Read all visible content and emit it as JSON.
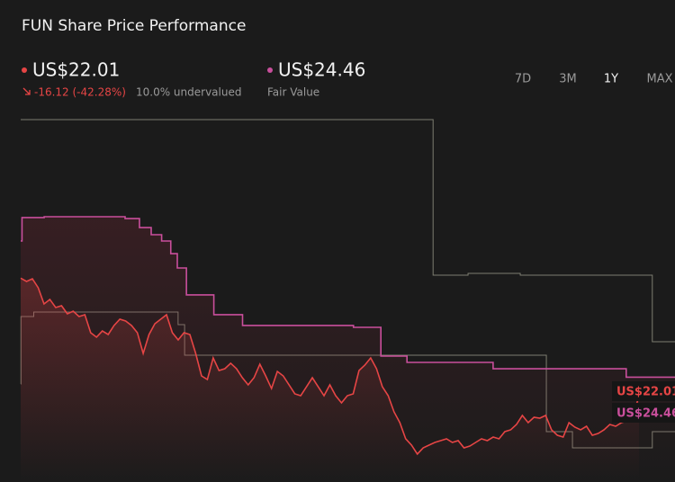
{
  "header": {
    "title": "FUN Share Price Performance",
    "price": "US$22.01",
    "change": "-16.12 (-42.28%)",
    "undervalued": "10.0% undervalued",
    "fair_value": "US$24.46",
    "fair_value_caption": "Fair Value",
    "ranges": [
      "7D",
      "3M",
      "1Y",
      "MAX"
    ],
    "active_range": 2
  },
  "chart_data": {
    "type": "line",
    "xlim": [
      0,
      250
    ],
    "ylim": [
      10,
      60
    ],
    "series": [
      {
        "color": "#7d7d70",
        "step": true,
        "x": [
          0,
          158,
          171.4,
          191.4,
          242
        ],
        "values": [
          60,
          38.54,
          38.78,
          38.54,
          29.36
        ]
      },
      {
        "color": "#7d7d70",
        "step": true,
        "x": [
          0,
          0.1,
          5,
          60.3,
          62.8,
          201.4,
          211.4,
          242
        ],
        "values": [
          23.52,
          32.83,
          33.45,
          31.71,
          27.49,
          16.95,
          14.71,
          16.95
        ]
      },
      {
        "color": "#c94f9c",
        "step": true,
        "fill": true,
        "x": [
          0,
          0.5,
          9,
          40,
          45.5,
          50,
          54,
          57.5,
          60,
          63.5,
          74,
          85,
          127.5,
          138,
          148,
          181,
          232
        ],
        "values": [
          43.25,
          46.48,
          46.6,
          46.35,
          45.11,
          44.12,
          43.25,
          41.51,
          39.53,
          35.81,
          33.08,
          31.59,
          31.34,
          27.37,
          26.5,
          25.63,
          24.46
        ]
      },
      {
        "color": "#e64545",
        "fill": true,
        "values": [
          38.13,
          37.67,
          38.04,
          36.8,
          34.57,
          35.19,
          34.07,
          34.32,
          33.2,
          33.57,
          32.83,
          33.08,
          30.6,
          29.98,
          30.84,
          30.35,
          31.59,
          32.46,
          32.21,
          31.59,
          30.6,
          27.74,
          30.35,
          31.84,
          32.46,
          33.08,
          30.6,
          29.6,
          30.6,
          30.35,
          27.74,
          24.64,
          24.14,
          27.12,
          25.38,
          25.63,
          26.38,
          25.63,
          24.39,
          23.4,
          24.39,
          26.25,
          24.64,
          22.9,
          25.26,
          24.64,
          23.4,
          22.16,
          21.91,
          23.15,
          24.39,
          23.15,
          21.91,
          23.4,
          21.91,
          20.92,
          21.91,
          22.16,
          25.38,
          26.13,
          27.12,
          25.63,
          23.15,
          21.91,
          19.68,
          18.19,
          15.96,
          15.09,
          13.85,
          14.71,
          15.09,
          15.46,
          15.71,
          15.96,
          15.46,
          15.71,
          14.71,
          14.96,
          15.46,
          15.96,
          15.71,
          16.2,
          15.96,
          16.95,
          17.2,
          17.94,
          19.18,
          18.19,
          18.93,
          18.81,
          19.18,
          17.2,
          16.45,
          16.2,
          18.19,
          17.57,
          17.2,
          17.69,
          16.45,
          16.7,
          17.2,
          17.94,
          17.69,
          18.19,
          18.44,
          18.81,
          22.01
        ]
      }
    ]
  }
}
